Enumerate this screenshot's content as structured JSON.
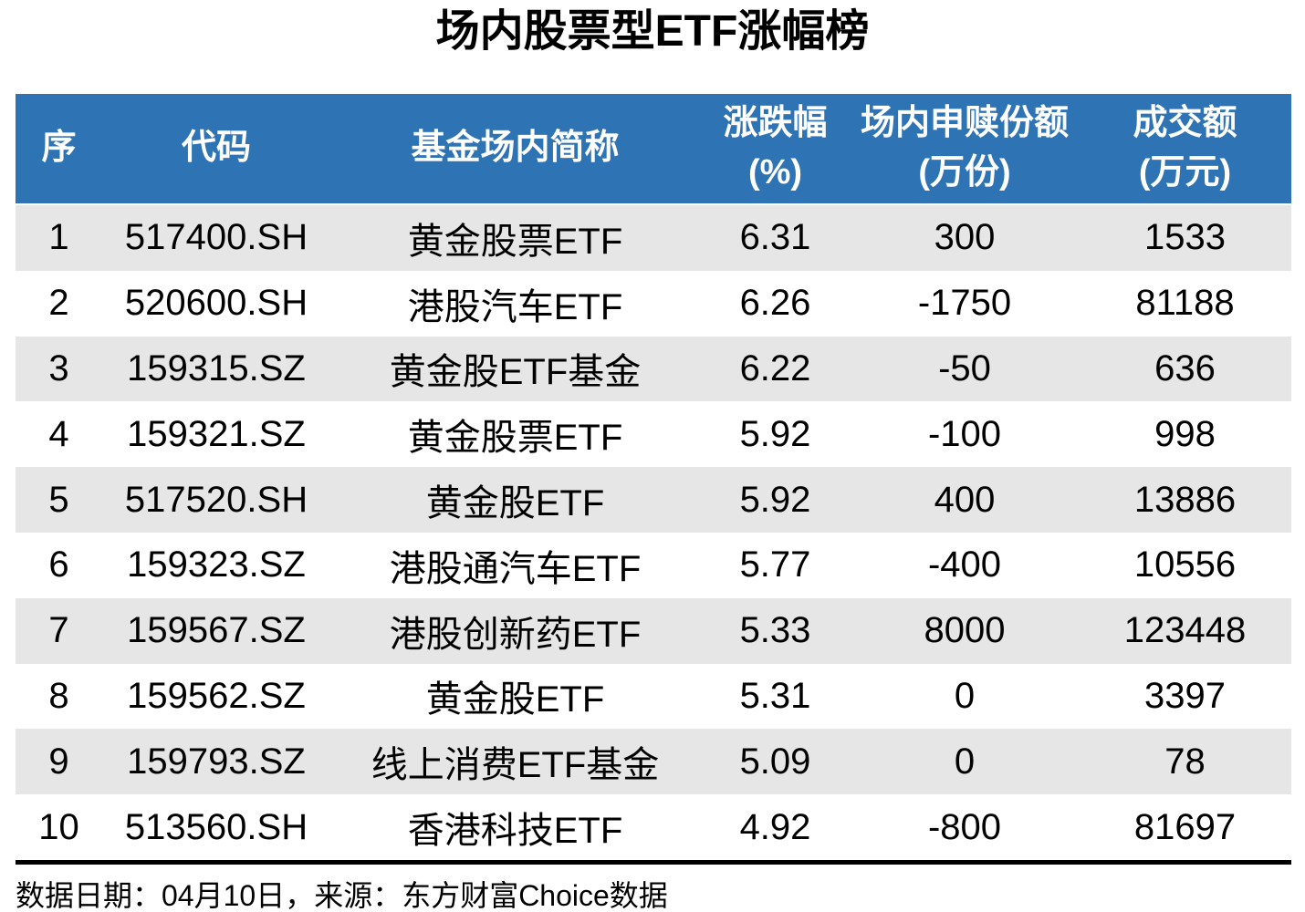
{
  "title": "场内股票型ETF涨幅榜",
  "colors": {
    "header_bg": "#2E74B5",
    "row_alt_bg": "#E6E6E6",
    "header_text": "#FFFFFF",
    "body_text": "#000000"
  },
  "table": {
    "columns": [
      {
        "id": "rank",
        "lines": [
          "序"
        ]
      },
      {
        "id": "code",
        "lines": [
          "代码"
        ]
      },
      {
        "id": "name",
        "lines": [
          "基金场内简称"
        ]
      },
      {
        "id": "change_pct",
        "lines": [
          "涨跌幅",
          "(%)"
        ]
      },
      {
        "id": "flow",
        "lines": [
          "场内申赎份额",
          "(万份)"
        ]
      },
      {
        "id": "turnover",
        "lines": [
          "成交额",
          "(万元)"
        ]
      }
    ],
    "rows": [
      {
        "rank": "1",
        "code": "517400.SH",
        "name": "黄金股票ETF",
        "change_pct": "6.31",
        "flow": "300",
        "turnover": "1533"
      },
      {
        "rank": "2",
        "code": "520600.SH",
        "name": "港股汽车ETF",
        "change_pct": "6.26",
        "flow": "-1750",
        "turnover": "81188"
      },
      {
        "rank": "3",
        "code": "159315.SZ",
        "name": "黄金股ETF基金",
        "change_pct": "6.22",
        "flow": "-50",
        "turnover": "636"
      },
      {
        "rank": "4",
        "code": "159321.SZ",
        "name": "黄金股票ETF",
        "change_pct": "5.92",
        "flow": "-100",
        "turnover": "998"
      },
      {
        "rank": "5",
        "code": "517520.SH",
        "name": "黄金股ETF",
        "change_pct": "5.92",
        "flow": "400",
        "turnover": "13886"
      },
      {
        "rank": "6",
        "code": "159323.SZ",
        "name": "港股通汽车ETF",
        "change_pct": "5.77",
        "flow": "-400",
        "turnover": "10556"
      },
      {
        "rank": "7",
        "code": "159567.SZ",
        "name": "港股创新药ETF",
        "change_pct": "5.33",
        "flow": "8000",
        "turnover": "123448"
      },
      {
        "rank": "8",
        "code": "159562.SZ",
        "name": "黄金股ETF",
        "change_pct": "5.31",
        "flow": "0",
        "turnover": "3397"
      },
      {
        "rank": "9",
        "code": "159793.SZ",
        "name": "线上消费ETF基金",
        "change_pct": "5.09",
        "flow": "0",
        "turnover": "78"
      },
      {
        "rank": "10",
        "code": "513560.SH",
        "name": "香港科技ETF",
        "change_pct": "4.92",
        "flow": "-800",
        "turnover": "81697"
      }
    ]
  },
  "footer": {
    "text": "数据日期：04月10日，来源：东方财富Choice数据"
  },
  "chart_data": {
    "type": "table",
    "title": "场内股票型ETF涨幅榜",
    "columns": [
      "序",
      "代码",
      "基金场内简称",
      "涨跌幅(%)",
      "场内申赎份额(万份)",
      "成交额(万元)"
    ],
    "rows": [
      [
        1,
        "517400.SH",
        "黄金股票ETF",
        6.31,
        300,
        1533
      ],
      [
        2,
        "520600.SH",
        "港股汽车ETF",
        6.26,
        -1750,
        81188
      ],
      [
        3,
        "159315.SZ",
        "黄金股ETF基金",
        6.22,
        -50,
        636
      ],
      [
        4,
        "159321.SZ",
        "黄金股票ETF",
        5.92,
        -100,
        998
      ],
      [
        5,
        "517520.SH",
        "黄金股ETF",
        5.92,
        400,
        13886
      ],
      [
        6,
        "159323.SZ",
        "港股通汽车ETF",
        5.77,
        -400,
        10556
      ],
      [
        7,
        "159567.SZ",
        "港股创新药ETF",
        5.33,
        8000,
        123448
      ],
      [
        8,
        "159562.SZ",
        "黄金股ETF",
        5.31,
        0,
        3397
      ],
      [
        9,
        "159793.SZ",
        "线上消费ETF基金",
        5.09,
        0,
        78
      ],
      [
        10,
        "513560.SH",
        "香港科技ETF",
        4.92,
        -800,
        81697
      ]
    ],
    "source_note": "数据日期：04月10日，来源：东方财富Choice数据",
    "layout": {
      "alternating_row_shading": true,
      "header_style": "blue-bar-white-text"
    }
  }
}
